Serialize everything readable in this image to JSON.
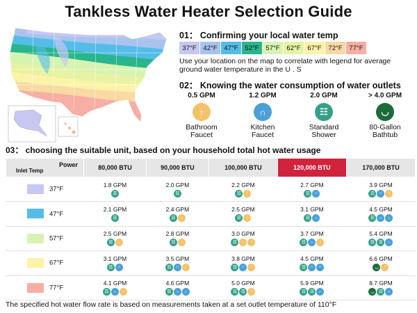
{
  "title": "Tankless Water Heater Selection Guide",
  "section1": {
    "heading": "01： Confirming your local water temp",
    "legend": [
      {
        "label": "37°F",
        "color": "#c6c7f2"
      },
      {
        "label": "42°F",
        "color": "#a8c4ee"
      },
      {
        "label": "47°F",
        "color": "#55bce8"
      },
      {
        "label": "52°F",
        "color": "#2ab58c"
      },
      {
        "label": "57°F",
        "color": "#d7f3b2"
      },
      {
        "label": "62°F",
        "color": "#e8f2a4"
      },
      {
        "label": "67°F",
        "color": "#fbf3a8"
      },
      {
        "label": "72°F",
        "color": "#f9d9a4"
      },
      {
        "label": "77°F",
        "color": "#f7aea4"
      }
    ],
    "note": "Use your location on the map to correlate with legend for average ground water temperature in the U . S"
  },
  "section2": {
    "heading": "02： Knowing the water consumption of water outlets",
    "outlets": [
      {
        "gpm": "0.5 GPM",
        "name_line1": "Bathroom",
        "name_line2": "Faucet",
        "icon": "faucet-icon",
        "color": "#f5c26b"
      },
      {
        "gpm": "1.2 GPM",
        "name_line1": "Kitchen",
        "name_line2": "Faucet",
        "icon": "kitchen-faucet-icon",
        "color": "#4aa0d8"
      },
      {
        "gpm": "2.0 GPM",
        "name_line1": "Standard",
        "name_line2": "Shower",
        "icon": "shower-icon",
        "color": "#35a089"
      },
      {
        "gpm": "> 4.0 GPM",
        "name_line1": "80-Gallon",
        "name_line2": "Bathtub",
        "icon": "bathtub-icon",
        "color": "#1c6b3a"
      }
    ]
  },
  "section3": {
    "heading": "03： choosing the suitable unit, based on your household total hot water usage",
    "header_power": "Power",
    "header_inlet": "Inlet Temp",
    "columns": [
      "80,000 BTU",
      "90,000 BTU",
      "100,000 BTU",
      "120,000 BTU",
      "170,000 BTU"
    ],
    "rows": [
      {
        "temp": "37°F",
        "color": "#c6c7f2",
        "cells": [
          {
            "gpm": "1.8 GPM",
            "icons": [
              "S"
            ]
          },
          {
            "gpm": "2.0 GPM",
            "icons": [
              "S"
            ]
          },
          {
            "gpm": "2.2 GPM",
            "icons": [
              "S",
              "F"
            ]
          },
          {
            "gpm": "2.7 GPM",
            "icons": [
              "S",
              "K"
            ]
          },
          {
            "gpm": "3.9 GPM",
            "icons": [
              "S",
              "K",
              "F"
            ]
          }
        ]
      },
      {
        "temp": "47°F",
        "color": "#55bce8",
        "cells": [
          {
            "gpm": "2.1 GPM",
            "icons": [
              "S"
            ]
          },
          {
            "gpm": "2.4 GPM",
            "icons": [
              "S",
              "F"
            ]
          },
          {
            "gpm": "2.5 GPM",
            "icons": [
              "S",
              "F"
            ]
          },
          {
            "gpm": "3.1 GPM",
            "icons": [
              "S",
              "K"
            ]
          },
          {
            "gpm": "4.5 GPM",
            "icons": [
              "S",
              "K",
              "K"
            ]
          }
        ]
      },
      {
        "temp": "57°F",
        "color": "#d7f3b2",
        "cells": [
          {
            "gpm": "2.5 GPM",
            "icons": [
              "S",
              "F"
            ]
          },
          {
            "gpm": "2.8 GPM",
            "icons": [
              "S",
              "F"
            ]
          },
          {
            "gpm": "3.0 GPM",
            "icons": [
              "S",
              "F",
              "F"
            ]
          },
          {
            "gpm": "3.7 GPM",
            "icons": [
              "S",
              "K",
              "F"
            ]
          },
          {
            "gpm": "5.4 GPM",
            "icons": [
              "S",
              "S",
              "K"
            ]
          }
        ]
      },
      {
        "temp": "67°F",
        "color": "#fbf3a8",
        "cells": [
          {
            "gpm": "3.1 GPM",
            "icons": [
              "S",
              "K"
            ]
          },
          {
            "gpm": "3.5 GPM",
            "icons": [
              "S",
              "K",
              "F"
            ]
          },
          {
            "gpm": "3.8 GPM",
            "icons": [
              "S",
              "K",
              "F"
            ]
          },
          {
            "gpm": "4.5 GPM",
            "icons": [
              "S",
              "K",
              "K"
            ]
          },
          {
            "gpm": "6.6 GPM",
            "icons": [
              "B",
              "F"
            ]
          }
        ]
      },
      {
        "temp": "77°F",
        "color": "#f7aea4",
        "cells": [
          {
            "gpm": "4.1 GPM",
            "icons": [
              "S",
              "K",
              "F"
            ]
          },
          {
            "gpm": "4.6 GPM",
            "icons": [
              "S",
              "K",
              "K"
            ]
          },
          {
            "gpm": "5.0 GPM",
            "icons": [
              "S",
              "S",
              "F"
            ]
          },
          {
            "gpm": "5.9 GPM",
            "icons": [
              "S",
              "S",
              "K"
            ]
          },
          {
            "gpm": "8.7 GPM",
            "icons": [
              "B",
              "S",
              "K"
            ]
          }
        ]
      }
    ]
  },
  "footer": "The specified hot water flow rate is based on measurements taken at a set outlet temperature of 110°F"
}
